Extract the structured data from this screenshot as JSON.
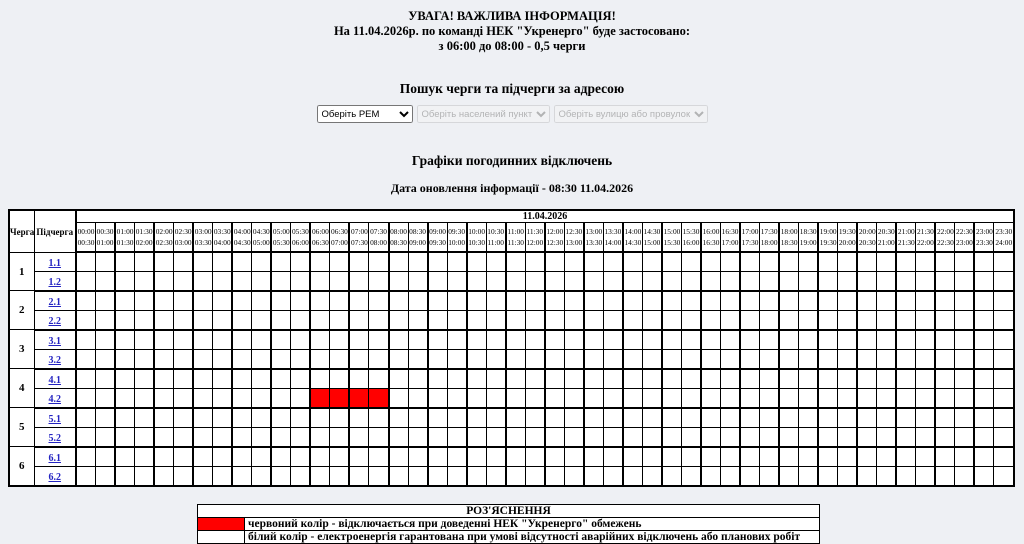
{
  "colors": {
    "page_bg": "#eef0f4",
    "outage_red": "#ff0000",
    "link_blue": "#2424c2",
    "white": "#ffffff"
  },
  "alert": {
    "line1": "УВАГА! ВАЖЛИВА ІНФОРМАЦІЯ!",
    "line2": "На 11.04.2026р. по команді НЕК \"Укренерго\" буде застосовано:",
    "line3": "з 06:00 до 08:00 - 0,5 черги"
  },
  "search": {
    "title": "Пошук черги та підчерги за адресою",
    "selects": [
      {
        "name": "rem-select",
        "value": "Оберіть РЕМ",
        "disabled": false
      },
      {
        "name": "settlement-select",
        "value": "Оберіть населений пункт",
        "disabled": true
      },
      {
        "name": "street-select",
        "value": "Оберіть вулицю або провулок",
        "disabled": true
      }
    ]
  },
  "schedule": {
    "title": "Графіки погодинних відключень",
    "updated": "Дата оновлення інформації - 08:30 11.04.2026",
    "date_header": "11.04.2026",
    "col_queue": "Черга",
    "col_subqueue": "Підчерга",
    "times": [
      "00:00",
      "00:30",
      "01:00",
      "01:30",
      "02:00",
      "02:30",
      "03:00",
      "03:30",
      "04:00",
      "04:30",
      "05:00",
      "05:30",
      "06:00",
      "06:30",
      "07:00",
      "07:30",
      "08:00",
      "08:30",
      "09:00",
      "09:30",
      "10:00",
      "10:30",
      "11:00",
      "11:30",
      "12:00",
      "12:30",
      "13:00",
      "13:30",
      "14:00",
      "14:30",
      "15:00",
      "15:30",
      "16:00",
      "16:30",
      "17:00",
      "17:30",
      "18:00",
      "18:30",
      "19:00",
      "19:30",
      "20:00",
      "20:30",
      "21:00",
      "21:30",
      "22:00",
      "22:30",
      "23:00",
      "23:30",
      "24:00"
    ],
    "queues": [
      {
        "label": "1",
        "subqueues": [
          "1.1",
          "1.2"
        ]
      },
      {
        "label": "2",
        "subqueues": [
          "2.1",
          "2.2"
        ]
      },
      {
        "label": "3",
        "subqueues": [
          "3.1",
          "3.2"
        ]
      },
      {
        "label": "4",
        "subqueues": [
          "4.1",
          "4.2"
        ]
      },
      {
        "label": "5",
        "subqueues": [
          "5.1",
          "5.2"
        ]
      },
      {
        "label": "6",
        "subqueues": [
          "6.1",
          "6.2"
        ]
      }
    ],
    "outages": [
      {
        "subqueue": "4.2",
        "from": "06:00",
        "to": "08:00"
      }
    ]
  },
  "legend": {
    "title": "РОЗ'ЯСНЕННЯ",
    "rows": [
      {
        "swatch": "#ff0000",
        "text": "червоний колір - відключається при доведенні НЕК \"Укренерго\" обмежень"
      },
      {
        "swatch": "#ffffff",
        "text": "білий колір - електроенергія гарантована при умові відсутності аварійних відключень або планових робіт"
      }
    ]
  }
}
